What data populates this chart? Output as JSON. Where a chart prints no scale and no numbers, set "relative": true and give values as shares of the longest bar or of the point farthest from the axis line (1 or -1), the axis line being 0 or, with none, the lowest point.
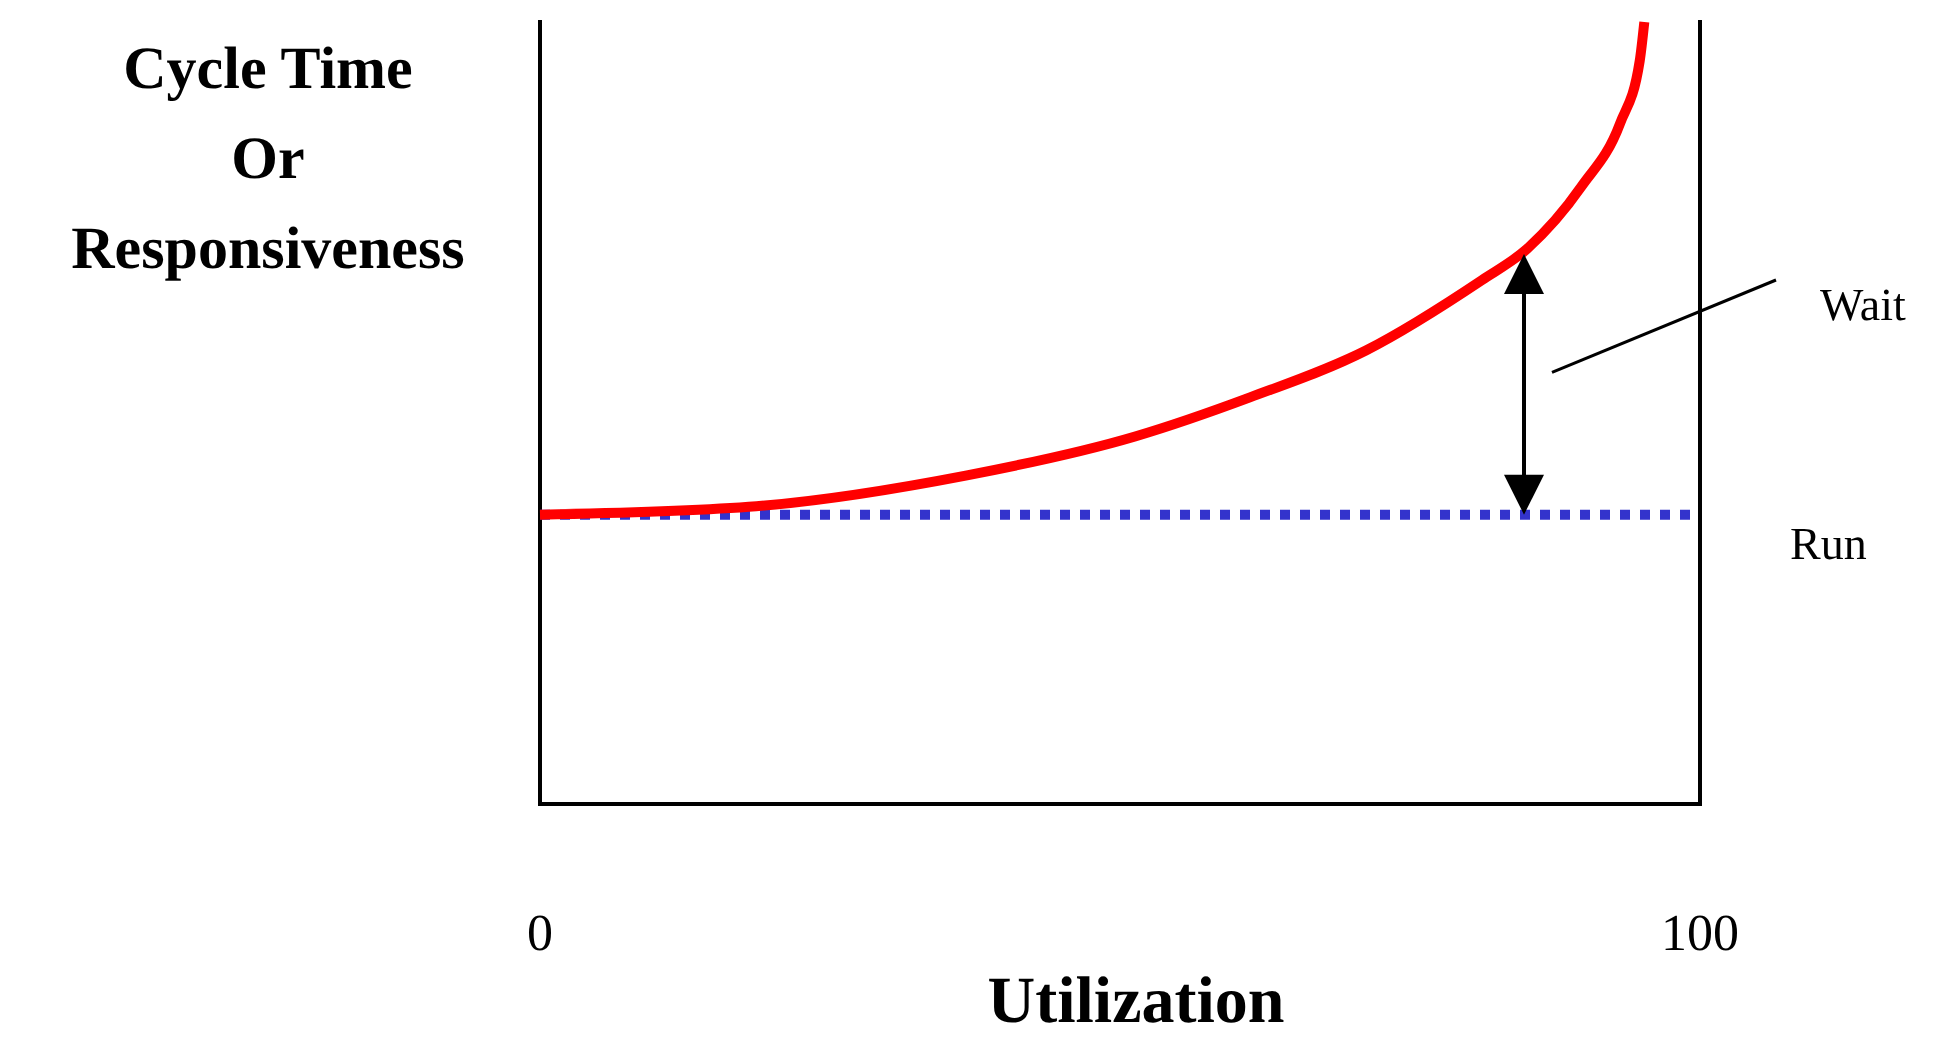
{
  "chart_data": {
    "type": "line",
    "relative": true,
    "xlabel": "Utilization",
    "ylabel": "Cycle Time\nOr\nResponsiveness",
    "xlim": [
      0,
      100
    ],
    "xticks": [
      0,
      100
    ],
    "grid": false,
    "marker": "none",
    "series": [
      {
        "color": "#ff0000",
        "line_style": "solid",
        "x": [
          0,
          18,
          36.7,
          51.3,
          61.2,
          71.2,
          81.2,
          85.1,
          89.8,
          93.1,
          94.8,
          95.2
        ],
        "values": [
          0.37,
          0.38,
          0.42,
          0.47,
          0.52,
          0.58,
          0.67,
          0.71,
          0.79,
          0.87,
          0.95,
          1
        ]
      }
    ],
    "ref_lines": [
      {
        "axis": "y",
        "value": 0.37,
        "label": "Run",
        "color": "#3333cc",
        "line_style": "dotted"
      }
    ],
    "annotations": [
      "Wait"
    ]
  }
}
